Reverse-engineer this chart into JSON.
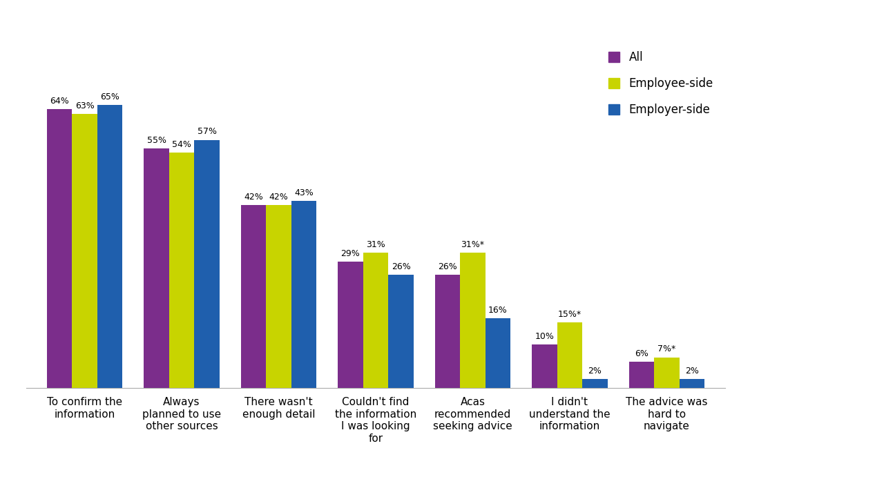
{
  "categories": [
    "To confirm the\ninformation",
    "Always\nplanned to use\nother sources",
    "There wasn't\nenough detail",
    "Couldn't find\nthe information\nI was looking\nfor",
    "Acas\nrecommended\nseeking advice",
    "I didn't\nunderstand the\ninformation",
    "The advice was\nhard to\nnavigate"
  ],
  "series": {
    "All": [
      64,
      55,
      42,
      29,
      26,
      10,
      6
    ],
    "Employee-side": [
      63,
      54,
      42,
      31,
      31,
      15,
      7
    ],
    "Employer-side": [
      65,
      57,
      43,
      26,
      16,
      2,
      2
    ]
  },
  "labels": {
    "All": [
      "64%",
      "55%",
      "42%",
      "29%",
      "26%",
      "10%",
      "6%"
    ],
    "Employee-side": [
      "63%",
      "54%",
      "42%",
      "31%",
      "31%*",
      "15%*",
      "7%*"
    ],
    "Employer-side": [
      "65%",
      "57%",
      "43%",
      "26%",
      "16%",
      "2%",
      "2%"
    ]
  },
  "colors": {
    "All": "#7B2D8B",
    "Employee-side": "#C8D400",
    "Employer-side": "#1F5FAD"
  },
  "legend_order": [
    "All",
    "Employee-side",
    "Employer-side"
  ],
  "bar_width": 0.26,
  "ylim": [
    0,
    80
  ],
  "background_color": "#ffffff",
  "label_fontsize": 9,
  "legend_fontsize": 12,
  "tick_fontsize": 11
}
